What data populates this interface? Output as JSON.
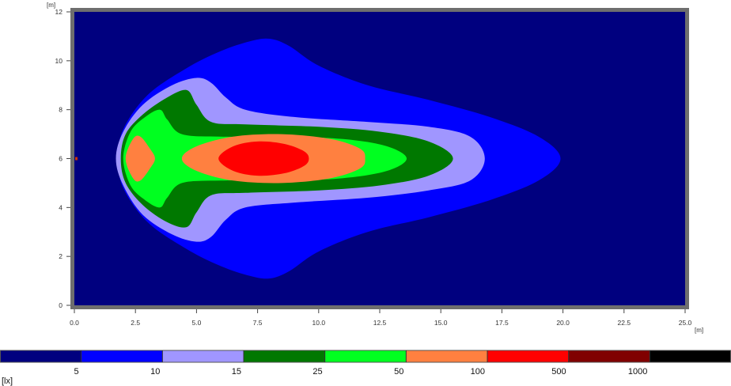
{
  "chart_data": {
    "type": "heatmap",
    "x_unit": "[m]",
    "y_unit": "[m]",
    "xlim": [
      0,
      25
    ],
    "ylim": [
      0,
      12
    ],
    "x_ticks": [
      "0.0",
      "2.5",
      "5.0",
      "7.5",
      "10.0",
      "12.5",
      "15.0",
      "17.5",
      "20.0",
      "22.5",
      "25.0"
    ],
    "y_ticks": [
      "0",
      "2",
      "4",
      "6",
      "8",
      "10",
      "12"
    ],
    "background_color": "#00007f",
    "frame_color": "#6e6e6e",
    "source_marker": {
      "x": 0.0,
      "y": 6.0,
      "color": "#cc3300"
    },
    "zones": [
      {
        "level": 5,
        "color": "#0000ff",
        "points": [
          [
            1.8,
            6.0
          ],
          [
            2.0,
            7.2
          ],
          [
            3.0,
            8.6
          ],
          [
            4.6,
            9.7
          ],
          [
            6.0,
            10.4
          ],
          [
            7.2,
            10.8
          ],
          [
            8.0,
            10.9
          ],
          [
            8.8,
            10.6
          ],
          [
            10.0,
            9.8
          ],
          [
            12.0,
            9.0
          ],
          [
            14.5,
            8.4
          ],
          [
            17.0,
            7.7
          ],
          [
            19.0,
            6.9
          ],
          [
            19.9,
            6.0
          ],
          [
            19.0,
            5.1
          ],
          [
            17.0,
            4.3
          ],
          [
            14.5,
            3.6
          ],
          [
            12.0,
            3.0
          ],
          [
            10.0,
            2.2
          ],
          [
            8.8,
            1.4
          ],
          [
            8.0,
            1.1
          ],
          [
            7.2,
            1.2
          ],
          [
            6.0,
            1.6
          ],
          [
            4.6,
            2.3
          ],
          [
            3.0,
            3.4
          ],
          [
            2.0,
            4.8
          ]
        ]
      },
      {
        "level": 10,
        "color": "#a096ff",
        "points": [
          [
            1.7,
            6.0
          ],
          [
            2.0,
            7.1
          ],
          [
            2.8,
            8.2
          ],
          [
            4.0,
            9.0
          ],
          [
            5.0,
            9.3
          ],
          [
            5.6,
            9.1
          ],
          [
            6.2,
            8.5
          ],
          [
            7.0,
            8.0
          ],
          [
            9.0,
            7.7
          ],
          [
            12.0,
            7.5
          ],
          [
            14.5,
            7.3
          ],
          [
            16.2,
            6.9
          ],
          [
            16.8,
            6.0
          ],
          [
            16.2,
            5.1
          ],
          [
            14.5,
            4.7
          ],
          [
            12.0,
            4.4
          ],
          [
            9.0,
            4.2
          ],
          [
            7.0,
            4.0
          ],
          [
            6.2,
            3.5
          ],
          [
            5.6,
            2.8
          ],
          [
            5.0,
            2.6
          ],
          [
            4.0,
            2.9
          ],
          [
            2.8,
            3.7
          ],
          [
            2.0,
            4.9
          ]
        ]
      },
      {
        "level": 15,
        "color": "#007800",
        "points": [
          [
            1.9,
            6.0
          ],
          [
            2.1,
            7.0
          ],
          [
            2.8,
            7.8
          ],
          [
            3.8,
            8.5
          ],
          [
            4.6,
            8.8
          ],
          [
            5.0,
            8.2
          ],
          [
            5.6,
            7.5
          ],
          [
            7.0,
            7.4
          ],
          [
            10.0,
            7.3
          ],
          [
            12.5,
            7.1
          ],
          [
            14.5,
            6.7
          ],
          [
            15.5,
            6.0
          ],
          [
            14.5,
            5.3
          ],
          [
            12.5,
            4.9
          ],
          [
            10.0,
            4.7
          ],
          [
            7.0,
            4.6
          ],
          [
            5.6,
            4.5
          ],
          [
            5.0,
            3.8
          ],
          [
            4.6,
            3.2
          ],
          [
            3.8,
            3.4
          ],
          [
            2.8,
            4.1
          ],
          [
            2.1,
            5.0
          ]
        ]
      },
      {
        "level": 25,
        "color": "#00ff20",
        "points": [
          [
            2.0,
            6.0
          ],
          [
            2.3,
            7.1
          ],
          [
            2.9,
            7.7
          ],
          [
            3.5,
            8.0
          ],
          [
            3.8,
            7.6
          ],
          [
            4.4,
            7.0
          ],
          [
            6.0,
            6.9
          ],
          [
            8.5,
            6.9
          ],
          [
            11.0,
            6.8
          ],
          [
            12.8,
            6.5
          ],
          [
            13.6,
            6.0
          ],
          [
            12.8,
            5.5
          ],
          [
            11.0,
            5.2
          ],
          [
            8.5,
            5.1
          ],
          [
            6.0,
            5.1
          ],
          [
            4.4,
            5.0
          ],
          [
            3.8,
            4.4
          ],
          [
            3.5,
            4.0
          ],
          [
            2.9,
            4.3
          ],
          [
            2.3,
            4.9
          ]
        ]
      },
      {
        "level": 50,
        "color": "#ff8040",
        "points": [
          [
            4.4,
            6.0
          ],
          [
            5.0,
            6.5
          ],
          [
            6.5,
            6.9
          ],
          [
            8.5,
            7.0
          ],
          [
            10.5,
            6.8
          ],
          [
            11.7,
            6.4
          ],
          [
            11.9,
            6.0
          ],
          [
            11.7,
            5.6
          ],
          [
            10.5,
            5.2
          ],
          [
            8.5,
            5.0
          ],
          [
            6.5,
            5.1
          ],
          [
            5.0,
            5.5
          ]
        ]
      },
      {
        "level": 50,
        "color": "#ff8040",
        "points": [
          [
            2.1,
            6.0
          ],
          [
            2.4,
            6.8
          ],
          [
            2.7,
            6.9
          ],
          [
            3.1,
            6.4
          ],
          [
            3.3,
            6.0
          ],
          [
            3.1,
            5.6
          ],
          [
            2.7,
            5.1
          ],
          [
            2.4,
            5.2
          ]
        ]
      },
      {
        "level": 100,
        "color": "#ff0000",
        "points": [
          [
            5.9,
            6.0
          ],
          [
            6.5,
            6.5
          ],
          [
            7.5,
            6.7
          ],
          [
            8.6,
            6.6
          ],
          [
            9.4,
            6.3
          ],
          [
            9.6,
            6.0
          ],
          [
            9.4,
            5.7
          ],
          [
            8.6,
            5.4
          ],
          [
            7.5,
            5.3
          ],
          [
            6.5,
            5.5
          ]
        ]
      }
    ],
    "legend": {
      "unit": "[lx]",
      "colors": [
        "#00007f",
        "#0000ff",
        "#a096ff",
        "#007800",
        "#00ff20",
        "#ff8040",
        "#ff0000",
        "#800000",
        "#000000"
      ],
      "labels": [
        "5",
        "10",
        "15",
        "25",
        "50",
        "100",
        "500",
        "1000"
      ]
    }
  }
}
